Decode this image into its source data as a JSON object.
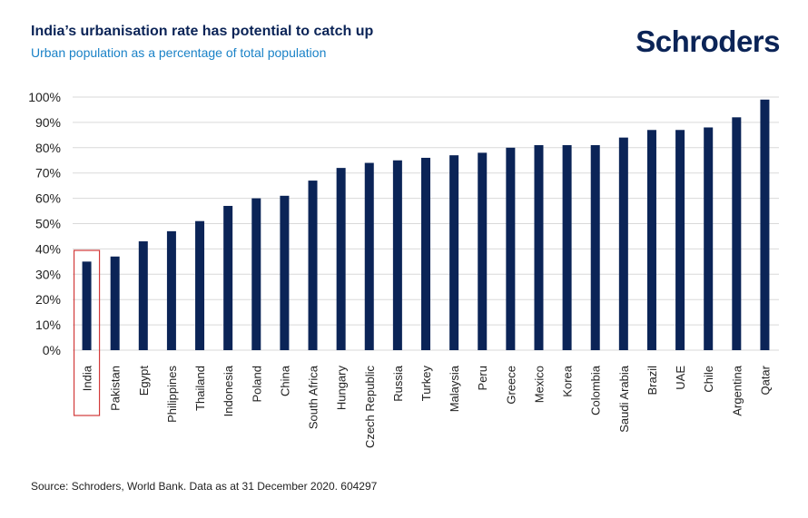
{
  "header": {
    "title": "India’s urbanisation rate has potential to catch up",
    "subtitle": "Urban population as a percentage of total population",
    "logo": "Schroders"
  },
  "footer": {
    "source": "Source: Schroders, World Bank. Data as at 31 December 2020. 604297"
  },
  "colors": {
    "bar": "#0b2457",
    "highlight_box": "#d23a3a",
    "grid": "#d9d9d9",
    "title": "#0b2457",
    "subtitle": "#1a82c7"
  },
  "chart_data": {
    "type": "bar",
    "title": "India’s urbanisation rate has potential to catch up",
    "subtitle": "Urban population as a percentage of total population",
    "xlabel": "",
    "ylabel": "",
    "ylim": [
      0,
      100
    ],
    "yticks": [
      "0%",
      "10%",
      "20%",
      "30%",
      "40%",
      "50%",
      "60%",
      "70%",
      "80%",
      "90%",
      "100%"
    ],
    "grid": true,
    "highlight": "India",
    "categories": [
      "India",
      "Pakistan",
      "Egypt",
      "Philippines",
      "Thailand",
      "Indonesia",
      "Poland",
      "China",
      "South Africa",
      "Hungary",
      "Czech Republic",
      "Russia",
      "Turkey",
      "Malaysia",
      "Peru",
      "Greece",
      "Mexico",
      "Korea",
      "Colombia",
      "Saudi Arabia",
      "Brazil",
      "UAE",
      "Chile",
      "Argentina",
      "Qatar"
    ],
    "values": [
      35,
      37,
      43,
      47,
      51,
      57,
      60,
      61,
      67,
      72,
      74,
      75,
      76,
      77,
      78,
      80,
      81,
      81,
      81,
      84,
      87,
      87,
      88,
      92,
      99
    ]
  }
}
